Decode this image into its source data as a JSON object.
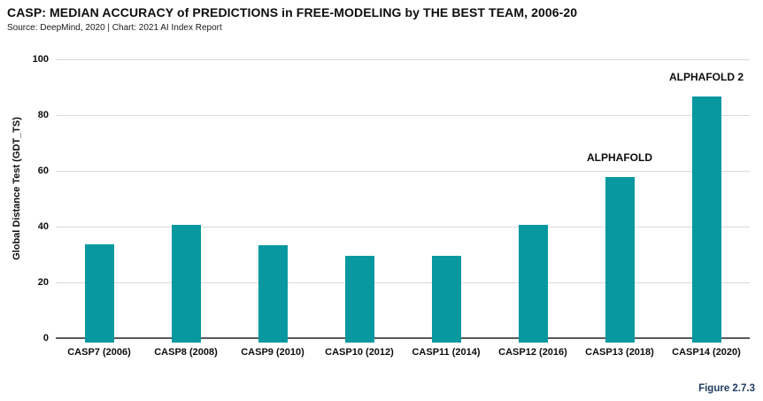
{
  "header": {
    "title": "CASP: MEDIAN ACCURACY of PREDICTIONS in FREE-MODELING by THE BEST TEAM, 2006-20",
    "source_line": "Source: DeepMind, 2020 | Chart: 2021 AI Index Report"
  },
  "figure_label": "Figure 2.7.3",
  "chart_data": {
    "type": "bar",
    "title": "CASP: MEDIAN ACCURACY of PREDICTIONS in FREE-MODELING by THE BEST TEAM, 2006-20",
    "subtitle": "Source: DeepMind, 2020 | Chart: 2021 AI Index Report",
    "categories": [
      "CASP7 (2006)",
      "CASP8 (2008)",
      "CASP9 (2010)",
      "CASP10 (2012)",
      "CASP11 (2014)",
      "CASP12 (2016)",
      "CASP13 (2018)",
      "CASP14 (2020)"
    ],
    "values": [
      34,
      41,
      33.5,
      30,
      30,
      41,
      58,
      87
    ],
    "annotations": [
      "",
      "",
      "",
      "",
      "",
      "",
      "ALPHAFOLD",
      "ALPHAFOLD 2"
    ],
    "xlabel": "",
    "ylabel": "Global Distance Test (GDT_TS)",
    "yticks": [
      0,
      20,
      40,
      60,
      80,
      100
    ],
    "ylim": [
      0,
      100
    ],
    "grid": true,
    "legend": "none",
    "bar_color": "#0798A0",
    "grid_color": "#d9d9d9",
    "axis_color": "#58595b",
    "figure_label_color": "#1f3a60"
  }
}
